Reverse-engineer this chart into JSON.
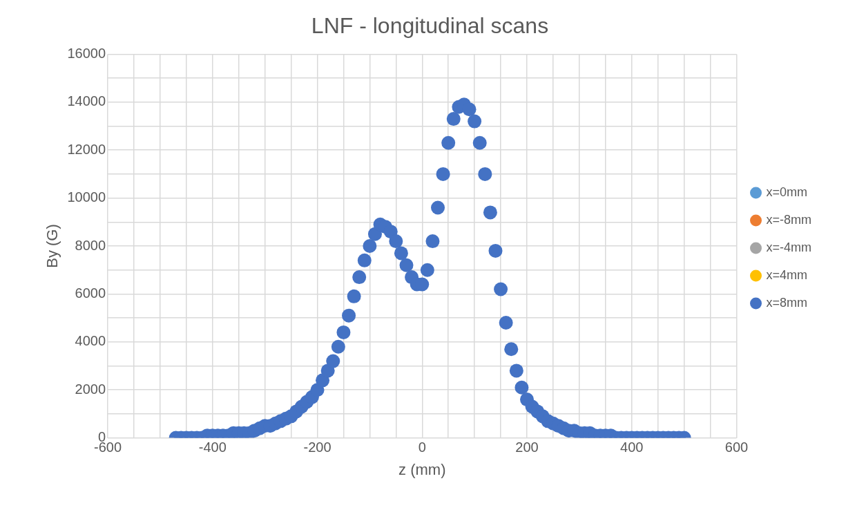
{
  "chart_data": {
    "type": "scatter",
    "title": "LNF - longitudinal scans",
    "xlabel": "z (mm)",
    "ylabel": "By (G)",
    "xlim": [
      -600,
      600
    ],
    "xticks": [
      -600,
      {
        "value": -550,
        "label": null
      },
      {
        "value": -500,
        "label": null
      },
      {
        "value": -450,
        "label": null
      },
      -400,
      {
        "value": -350,
        "label": null
      },
      {
        "value": -300,
        "label": null
      },
      {
        "value": -250,
        "label": null
      },
      -200,
      {
        "value": -150,
        "label": null
      },
      {
        "value": -100,
        "label": null
      },
      {
        "value": -50,
        "label": null
      },
      0,
      {
        "value": 50,
        "label": null
      },
      {
        "value": 100,
        "label": null
      },
      {
        "value": 150,
        "label": null
      },
      200,
      {
        "value": 250,
        "label": null
      },
      {
        "value": 300,
        "label": null
      },
      {
        "value": 350,
        "label": null
      },
      400,
      {
        "value": 450,
        "label": null
      },
      {
        "value": 500,
        "label": null
      },
      {
        "value": 550,
        "label": null
      },
      600
    ],
    "ylim": [
      0,
      16000
    ],
    "yticks": [
      0,
      {
        "value": 1000,
        "label": null
      },
      2000,
      {
        "value": 3000,
        "label": null
      },
      4000,
      {
        "value": 5000,
        "label": null
      },
      6000,
      {
        "value": 7000,
        "label": null
      },
      8000,
      {
        "value": 9000,
        "label": null
      },
      10000,
      {
        "value": 11000,
        "label": null
      },
      12000,
      {
        "value": 13000,
        "label": null
      },
      14000,
      {
        "value": 15000,
        "label": null
      },
      16000
    ],
    "grid": true,
    "legend": "right",
    "marker": "circle",
    "x": [
      -470,
      -460,
      -450,
      -440,
      -430,
      -420,
      -410,
      -400,
      -390,
      -380,
      -370,
      -360,
      -350,
      -340,
      -330,
      -320,
      -310,
      -300,
      -290,
      -280,
      -270,
      -260,
      -250,
      -240,
      -230,
      -220,
      -210,
      -200,
      -190,
      -180,
      -170,
      -160,
      -150,
      -140,
      -130,
      -120,
      -110,
      -100,
      -90,
      -80,
      -70,
      -60,
      -50,
      -40,
      -30,
      -20,
      -10,
      0,
      10,
      20,
      30,
      40,
      50,
      60,
      70,
      80,
      90,
      100,
      110,
      120,
      130,
      140,
      150,
      160,
      170,
      180,
      190,
      200,
      210,
      220,
      230,
      240,
      250,
      260,
      270,
      280,
      290,
      300,
      310,
      320,
      330,
      340,
      350,
      360,
      370,
      380,
      390,
      400,
      410,
      420,
      430,
      440,
      450,
      460,
      470,
      480,
      490,
      500
    ],
    "series": [
      {
        "name": "x=0mm",
        "color": "#5b9bd5",
        "values": [
          null,
          null,
          null,
          null,
          null,
          null,
          null,
          null,
          null,
          null,
          null,
          null,
          null,
          null,
          null,
          null,
          null,
          null,
          null,
          null,
          null,
          null,
          null,
          null,
          null,
          null,
          null,
          null,
          null,
          null,
          null,
          null,
          null,
          null,
          null,
          null,
          null,
          null,
          null,
          null,
          null,
          null,
          null,
          null,
          null,
          null,
          null,
          null,
          null,
          null,
          null,
          null,
          null,
          null,
          null,
          null,
          null,
          null,
          null,
          null,
          null,
          null,
          null,
          null,
          null,
          null,
          null,
          null,
          null,
          null,
          null,
          null,
          null,
          null,
          null,
          null,
          null,
          null,
          null,
          null,
          null,
          null,
          null,
          null,
          null,
          null,
          null,
          null,
          null,
          null,
          null,
          null,
          null,
          null,
          null,
          null,
          null,
          null
        ]
      },
      {
        "name": "x=-8mm",
        "color": "#ed7d31",
        "values": [
          null,
          null,
          null,
          null,
          null,
          null,
          null,
          null,
          null,
          null,
          null,
          null,
          null,
          null,
          null,
          null,
          null,
          null,
          null,
          null,
          null,
          null,
          null,
          null,
          null,
          null,
          null,
          null,
          null,
          null,
          null,
          null,
          null,
          null,
          null,
          null,
          null,
          null,
          null,
          null,
          null,
          null,
          null,
          null,
          null,
          null,
          null,
          null,
          null,
          null,
          null,
          null,
          null,
          null,
          null,
          null,
          null,
          null,
          null,
          null,
          null,
          null,
          null,
          null,
          null,
          null,
          null,
          null,
          null,
          null,
          null,
          null,
          null,
          null,
          null,
          null,
          null,
          null,
          null,
          null,
          null,
          null,
          null,
          null,
          null,
          null,
          null,
          null,
          null,
          null,
          null,
          null,
          null,
          null,
          null,
          null,
          null,
          null
        ]
      },
      {
        "name": "x=-4mm",
        "color": "#a5a5a5",
        "values": [
          null,
          null,
          null,
          null,
          null,
          null,
          null,
          null,
          null,
          null,
          null,
          null,
          null,
          null,
          null,
          null,
          null,
          null,
          null,
          null,
          null,
          null,
          null,
          null,
          null,
          null,
          null,
          null,
          null,
          null,
          null,
          null,
          null,
          null,
          null,
          null,
          null,
          null,
          null,
          null,
          null,
          null,
          null,
          null,
          null,
          null,
          null,
          null,
          null,
          null,
          null,
          null,
          null,
          null,
          null,
          null,
          null,
          null,
          null,
          null,
          null,
          null,
          null,
          null,
          null,
          null,
          null,
          null,
          null,
          null,
          null,
          null,
          null,
          null,
          null,
          null,
          null,
          null,
          null,
          null,
          null,
          null,
          null,
          null,
          null,
          null,
          null,
          null,
          null,
          null,
          null,
          null,
          null,
          null,
          null,
          null,
          null,
          null
        ]
      },
      {
        "name": "x=4mm",
        "color": "#ffc000",
        "values": [
          null,
          null,
          null,
          null,
          null,
          null,
          null,
          null,
          null,
          null,
          null,
          null,
          null,
          null,
          null,
          null,
          null,
          null,
          null,
          null,
          null,
          null,
          null,
          null,
          null,
          null,
          null,
          null,
          null,
          null,
          null,
          null,
          null,
          null,
          null,
          null,
          null,
          null,
          null,
          null,
          null,
          null,
          null,
          null,
          null,
          null,
          null,
          null,
          null,
          null,
          null,
          null,
          null,
          null,
          null,
          null,
          null,
          null,
          null,
          null,
          null,
          null,
          null,
          null,
          null,
          null,
          null,
          null,
          null,
          null,
          null,
          null,
          null,
          null,
          null,
          null,
          null,
          null,
          null,
          null,
          null,
          null,
          null,
          null,
          null,
          null,
          null,
          null,
          null,
          null,
          null,
          null,
          null,
          null,
          null,
          null,
          null,
          null
        ]
      },
      {
        "name": "x=8mm",
        "color": "#4472c4",
        "values": [
          0,
          0,
          0,
          0,
          0,
          0,
          100,
          100,
          100,
          100,
          100,
          200,
          200,
          200,
          200,
          300,
          400,
          500,
          500,
          600,
          700,
          800,
          900,
          1100,
          1300,
          1500,
          1700,
          2000,
          2400,
          2800,
          3200,
          3800,
          4400,
          5100,
          5900,
          6700,
          7400,
          8000,
          8500,
          8900,
          8800,
          8600,
          8200,
          7700,
          7200,
          6700,
          6400,
          6400,
          7000,
          8200,
          9600,
          11000,
          12300,
          13300,
          13800,
          13900,
          13700,
          13200,
          12300,
          11000,
          9400,
          7800,
          6200,
          4800,
          3700,
          2800,
          2100,
          1600,
          1300,
          1100,
          900,
          700,
          600,
          500,
          400,
          300,
          300,
          200,
          200,
          200,
          100,
          100,
          100,
          100,
          0,
          0,
          0,
          0,
          0,
          0,
          0,
          0,
          0,
          0,
          0,
          0,
          0,
          0
        ]
      }
    ]
  }
}
